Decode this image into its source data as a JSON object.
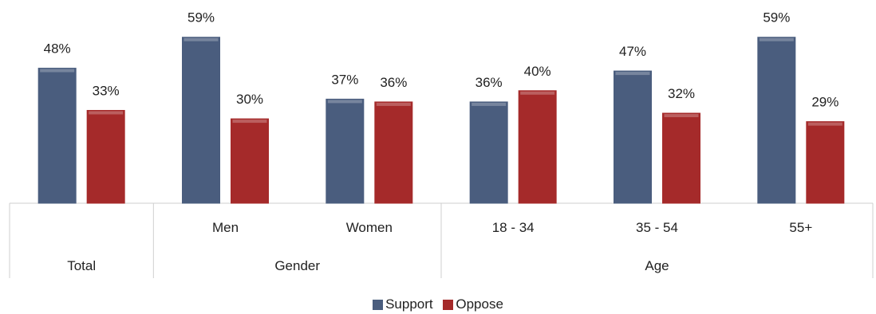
{
  "chart_data": {
    "type": "bar",
    "categories": [
      "",
      "Men",
      "Women",
      "18 - 34",
      "35 - 54",
      "55+"
    ],
    "groups": [
      {
        "label": "Total",
        "span": 1
      },
      {
        "label": "Gender",
        "span": 2
      },
      {
        "label": "Age",
        "span": 3
      }
    ],
    "series": [
      {
        "name": "Support",
        "color": "#4a5d7e",
        "values": [
          48,
          59,
          37,
          36,
          47,
          59
        ]
      },
      {
        "name": "Oppose",
        "color": "#a52a2a",
        "values": [
          33,
          30,
          36,
          40,
          32,
          29
        ]
      }
    ],
    "value_suffix": "%",
    "ylim": [
      0,
      60
    ],
    "grid": false,
    "legend_position": "bottom"
  }
}
